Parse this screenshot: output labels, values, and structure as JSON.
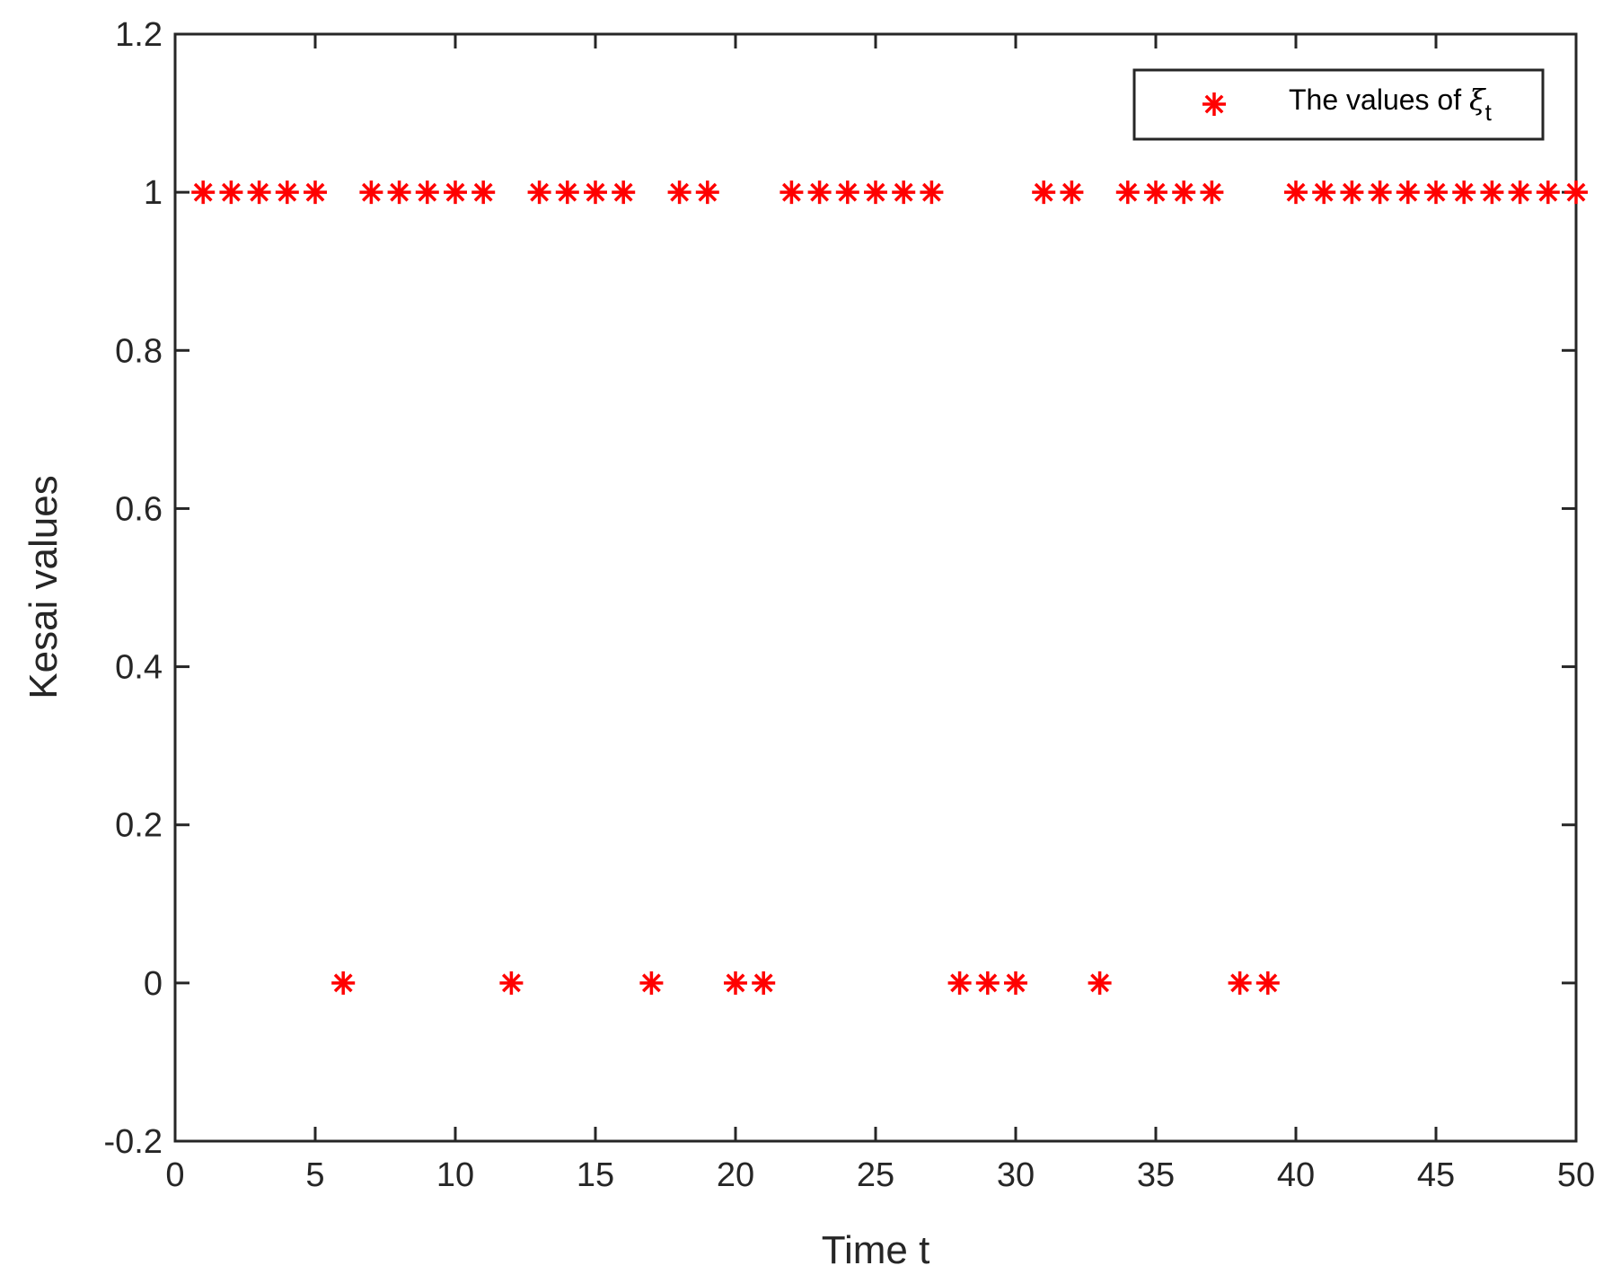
{
  "chart_data": {
    "type": "scatter",
    "title": "",
    "xlabel": "Time t",
    "ylabel": "Kesai values",
    "xlim": [
      0,
      50
    ],
    "ylim": [
      -0.2,
      1.2
    ],
    "xticks": [
      0,
      5,
      10,
      15,
      20,
      25,
      30,
      35,
      40,
      45,
      50
    ],
    "yticks": [
      -0.2,
      0,
      0.2,
      0.4,
      0.6,
      0.8,
      1,
      1.2
    ],
    "xtick_labels": [
      "0",
      "5",
      "10",
      "15",
      "20",
      "25",
      "30",
      "35",
      "40",
      "45",
      "50"
    ],
    "ytick_labels": [
      "-0.2",
      "0",
      "0.2",
      "0.4",
      "0.6",
      "0.8",
      "1",
      "1.2"
    ],
    "grid": false,
    "legend_position": "top-right",
    "marker": "asterisk",
    "color": "#ff0000",
    "series": [
      {
        "name": "The values of ξt",
        "legend_label": {
          "text": "The values of ",
          "symbol": "ξ",
          "subscript": "t"
        },
        "x": [
          1,
          2,
          3,
          4,
          5,
          6,
          7,
          8,
          9,
          10,
          11,
          12,
          13,
          14,
          15,
          16,
          17,
          18,
          19,
          20,
          21,
          22,
          23,
          24,
          25,
          26,
          27,
          28,
          29,
          30,
          31,
          32,
          33,
          34,
          35,
          36,
          37,
          38,
          39,
          40,
          41,
          42,
          43,
          44,
          45,
          46,
          47,
          48,
          49,
          50
        ],
        "y": [
          1,
          1,
          1,
          1,
          1,
          0,
          1,
          1,
          1,
          1,
          1,
          0,
          1,
          1,
          1,
          1,
          0,
          1,
          1,
          0,
          0,
          1,
          1,
          1,
          1,
          1,
          1,
          0,
          0,
          0,
          1,
          1,
          0,
          1,
          1,
          1,
          1,
          0,
          0,
          1,
          1,
          1,
          1,
          1,
          1,
          1,
          1,
          1,
          1,
          1
        ]
      }
    ]
  }
}
